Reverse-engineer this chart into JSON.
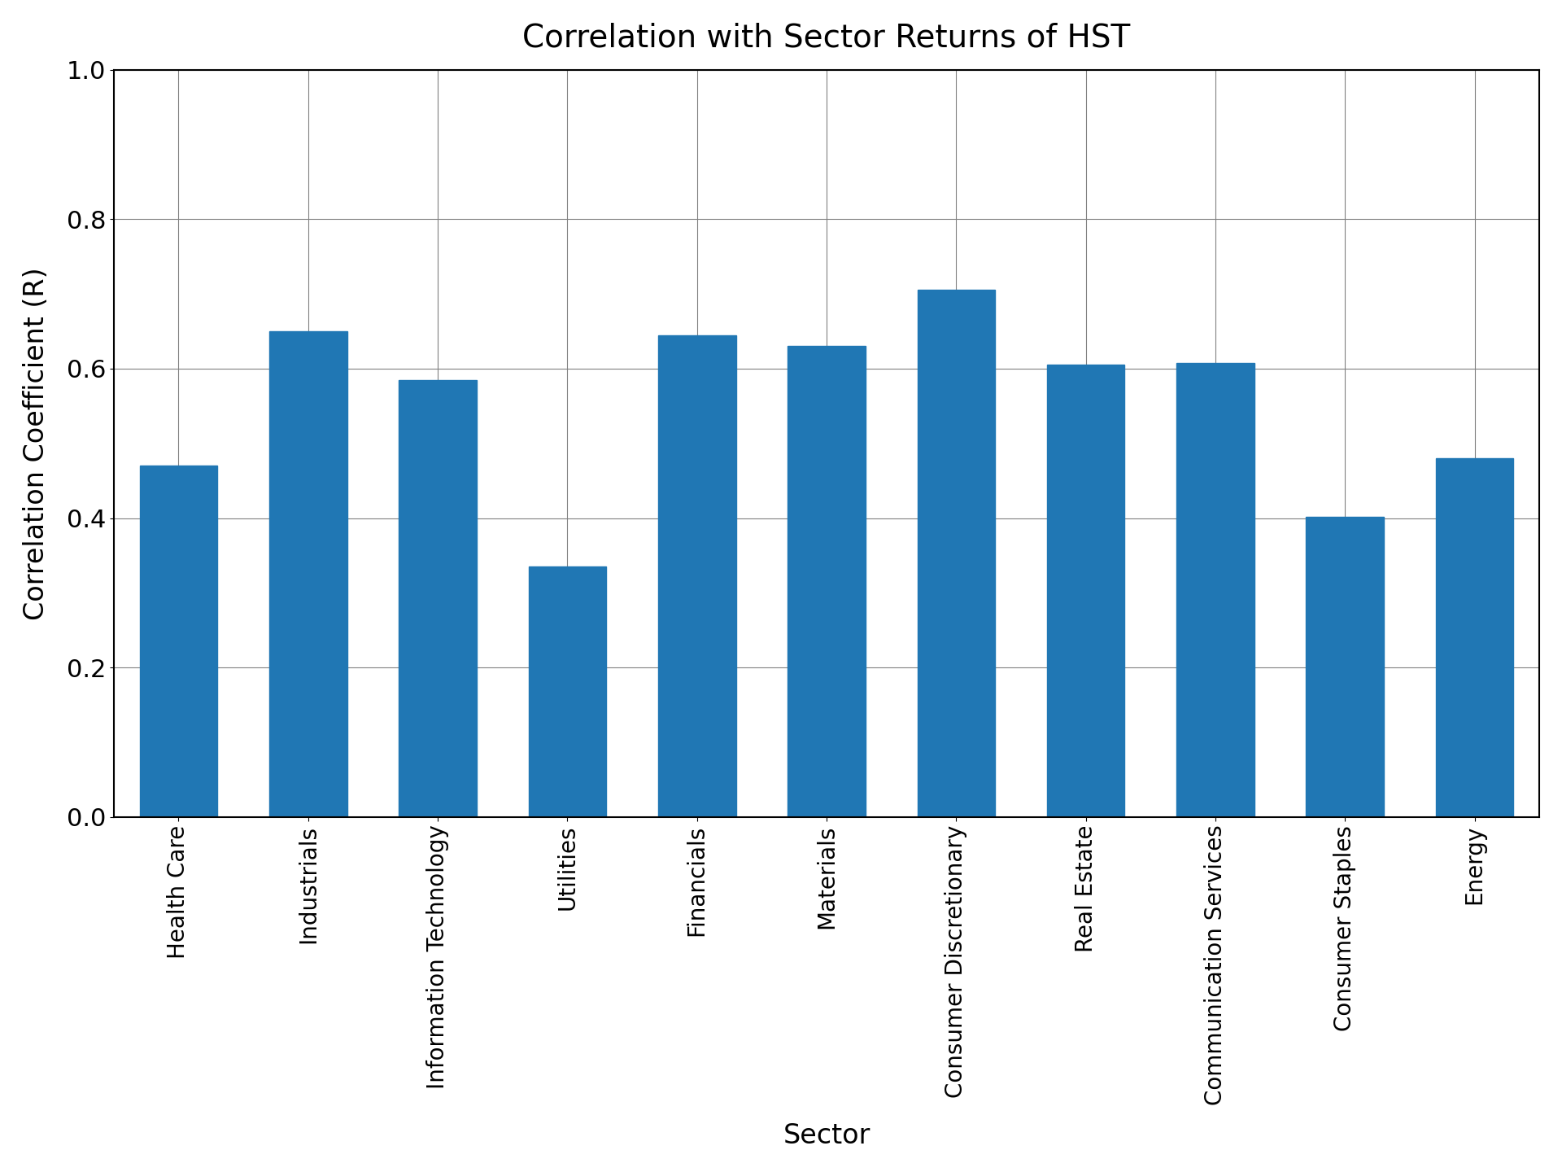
{
  "title": "Correlation with Sector Returns of HST",
  "xlabel": "Sector",
  "ylabel": "Correlation Coefficient (R)",
  "categories": [
    "Health Care",
    "Industrials",
    "Information Technology",
    "Utilities",
    "Financials",
    "Materials",
    "Consumer Discretionary",
    "Real Estate",
    "Communication Services",
    "Consumer Staples",
    "Energy"
  ],
  "values": [
    0.47,
    0.65,
    0.585,
    0.335,
    0.645,
    0.63,
    0.705,
    0.605,
    0.608,
    0.402,
    0.48
  ],
  "bar_color": "#2077b4",
  "ylim": [
    0.0,
    1.0
  ],
  "yticks": [
    0.0,
    0.2,
    0.4,
    0.6,
    0.8,
    1.0
  ],
  "background_color": "#ffffff",
  "title_fontsize": 28,
  "label_fontsize": 24,
  "tick_fontsize": 22,
  "xtick_fontsize": 20
}
